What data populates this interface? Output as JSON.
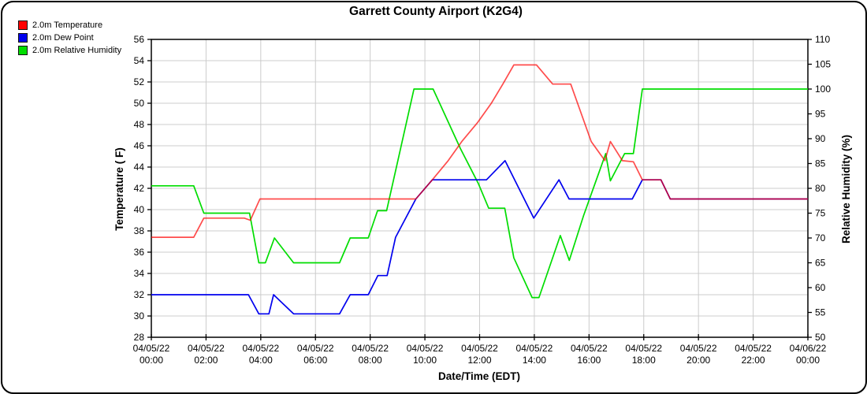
{
  "chart_data": {
    "type": "line",
    "title": "Garrett County Airport (K2G4)",
    "xlabel": "Date/Time (EDT)",
    "x_axis": {
      "min_hours": 0,
      "max_hours": 24,
      "ticks": [
        {
          "t": 0,
          "date": "04/05/22",
          "time": "00:00"
        },
        {
          "t": 2,
          "date": "04/05/22",
          "time": "02:00"
        },
        {
          "t": 4,
          "date": "04/05/22",
          "time": "04:00"
        },
        {
          "t": 6,
          "date": "04/05/22",
          "time": "06:00"
        },
        {
          "t": 8,
          "date": "04/05/22",
          "time": "08:00"
        },
        {
          "t": 10,
          "date": "04/05/22",
          "time": "10:00"
        },
        {
          "t": 12,
          "date": "04/05/22",
          "time": "12:00"
        },
        {
          "t": 14,
          "date": "04/05/22",
          "time": "14:00"
        },
        {
          "t": 16,
          "date": "04/05/22",
          "time": "16:00"
        },
        {
          "t": 18,
          "date": "04/05/22",
          "time": "18:00"
        },
        {
          "t": 20,
          "date": "04/05/22",
          "time": "20:00"
        },
        {
          "t": 22,
          "date": "04/05/22",
          "time": "22:00"
        },
        {
          "t": 24,
          "date": "04/06/22",
          "time": "00:00"
        }
      ]
    },
    "left_axis": {
      "label": "Temperature ( F)",
      "min": 28,
      "max": 56,
      "tick_labels": [
        28,
        30,
        32,
        34,
        36,
        38,
        40,
        42,
        44,
        46,
        48,
        50,
        52,
        54,
        56
      ]
    },
    "right_axis": {
      "label": "Relative Humidity (%)",
      "min": 50,
      "max": 110,
      "tick_labels": [
        50,
        55,
        60,
        65,
        70,
        75,
        80,
        85,
        90,
        95,
        100,
        105,
        110
      ]
    },
    "grid": true,
    "legend_position": "top-left",
    "colors": {
      "grid": "#cccccc",
      "axis": "#000000",
      "background": "#ffffff"
    },
    "series": [
      {
        "id": "temperature-line",
        "name": "2.0m Temperature",
        "color": "#ff0000",
        "opacity": 0.7,
        "axis": "left",
        "points": [
          [
            0,
            37.4
          ],
          [
            1.55,
            37.4
          ],
          [
            1.92,
            39.2
          ],
          [
            3.4,
            39.2
          ],
          [
            3.62,
            39.0
          ],
          [
            3.97,
            41.0
          ],
          [
            9.67,
            41.0
          ],
          [
            10.27,
            42.8
          ],
          [
            10.85,
            44.6
          ],
          [
            11.35,
            46.4
          ],
          [
            11.93,
            48.2
          ],
          [
            12.43,
            50.0
          ],
          [
            12.85,
            51.8
          ],
          [
            13.25,
            53.6
          ],
          [
            14.08,
            53.6
          ],
          [
            14.67,
            51.8
          ],
          [
            15.33,
            51.8
          ],
          [
            16.08,
            46.4
          ],
          [
            16.58,
            44.6
          ],
          [
            16.78,
            46.4
          ],
          [
            17.22,
            44.6
          ],
          [
            17.62,
            44.5
          ],
          [
            17.95,
            42.8
          ],
          [
            18.63,
            42.8
          ],
          [
            18.97,
            41.0
          ],
          [
            24,
            41.0
          ]
        ]
      },
      {
        "id": "dew-point-line",
        "name": "2.0m Dew Point",
        "color": "#0000ee",
        "opacity": 1,
        "axis": "left",
        "points": [
          [
            0,
            32.0
          ],
          [
            3.55,
            32.0
          ],
          [
            3.93,
            30.2
          ],
          [
            4.3,
            30.2
          ],
          [
            4.47,
            32.0
          ],
          [
            5.2,
            30.2
          ],
          [
            6.88,
            30.2
          ],
          [
            7.27,
            32.0
          ],
          [
            7.93,
            32.0
          ],
          [
            8.28,
            33.8
          ],
          [
            8.62,
            33.8
          ],
          [
            8.93,
            37.4
          ],
          [
            9.67,
            41.0
          ],
          [
            10.27,
            42.8
          ],
          [
            12.25,
            42.8
          ],
          [
            12.93,
            44.6
          ],
          [
            13.98,
            39.2
          ],
          [
            14.9,
            42.8
          ],
          [
            15.27,
            41.0
          ],
          [
            17.58,
            41.0
          ],
          [
            17.95,
            42.8
          ],
          [
            18.63,
            42.8
          ],
          [
            18.97,
            41.0
          ],
          [
            24,
            41.0
          ]
        ]
      },
      {
        "id": "relative-humidity-line",
        "name": "2.0m Relative Humidity",
        "color": "#00dd00",
        "opacity": 1,
        "axis": "right",
        "points": [
          [
            0,
            80.5
          ],
          [
            1.55,
            80.5
          ],
          [
            1.92,
            75.0
          ],
          [
            3.59,
            75.0
          ],
          [
            3.93,
            65.0
          ],
          [
            4.17,
            65.0
          ],
          [
            4.5,
            70.0
          ],
          [
            5.2,
            65.0
          ],
          [
            6.88,
            65.0
          ],
          [
            7.27,
            70.0
          ],
          [
            7.93,
            70.0
          ],
          [
            8.27,
            75.5
          ],
          [
            8.6,
            75.5
          ],
          [
            9.6,
            100
          ],
          [
            10.3,
            100
          ],
          [
            11.3,
            88.0
          ],
          [
            11.95,
            81.0
          ],
          [
            12.33,
            76.0
          ],
          [
            12.92,
            76.0
          ],
          [
            13.25,
            66.0
          ],
          [
            13.92,
            58.0
          ],
          [
            14.17,
            58.0
          ],
          [
            14.95,
            70.5
          ],
          [
            15.28,
            65.5
          ],
          [
            15.8,
            74.5
          ],
          [
            16.61,
            87.0
          ],
          [
            16.78,
            81.5
          ],
          [
            17.3,
            87.0
          ],
          [
            17.62,
            87.0
          ],
          [
            17.95,
            100
          ],
          [
            24,
            100
          ]
        ]
      }
    ]
  }
}
